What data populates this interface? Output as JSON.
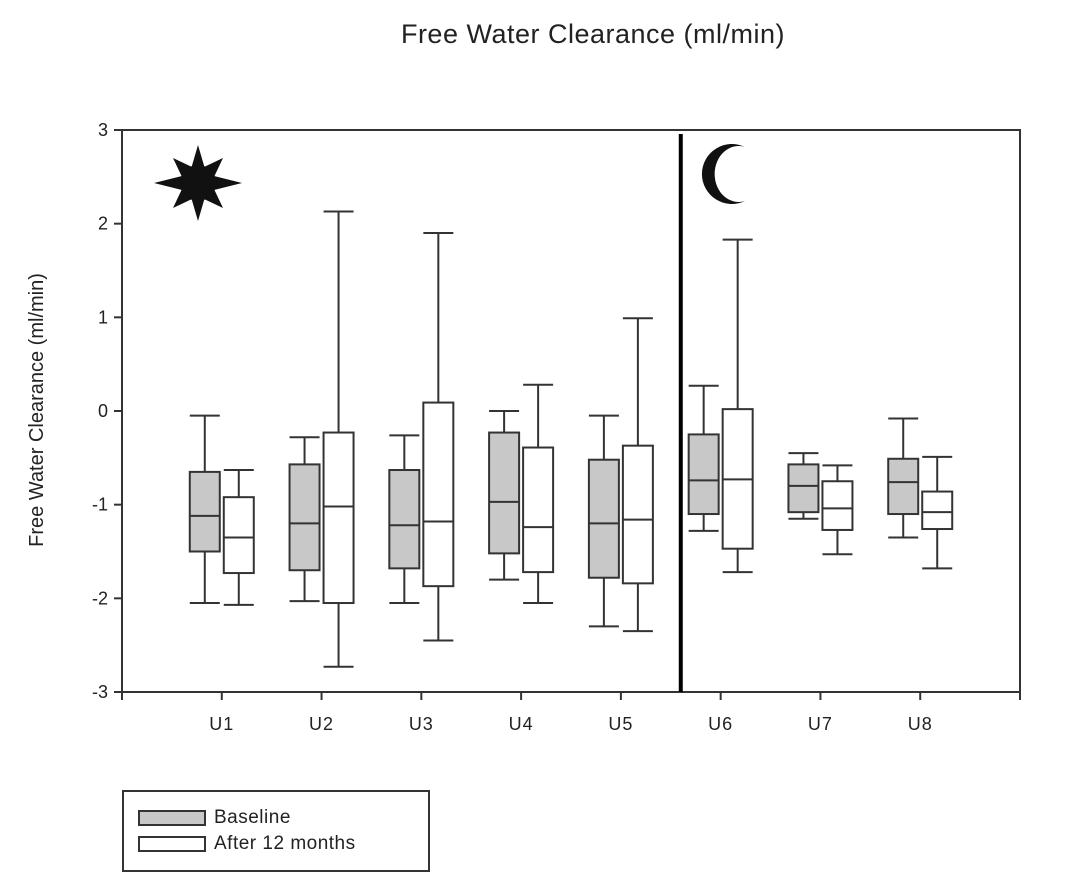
{
  "chart_data": {
    "type": "box",
    "title": "Free Water Clearance (ml/min)",
    "ylabel": "Free Water Clearance (ml/min)",
    "xlabel": "",
    "ylim": [
      -3,
      3
    ],
    "yticks": [
      -3,
      -2,
      -1,
      0,
      1,
      2,
      3
    ],
    "categories": [
      "U1",
      "U2",
      "U3",
      "U4",
      "U5",
      "U6",
      "U7",
      "U8"
    ],
    "divider_between": [
      "U5",
      "U6"
    ],
    "grid": false,
    "legend_position": "bottom-left, below plot",
    "icons": {
      "left_panel": "sun-icon",
      "right_panel": "moon-icon"
    },
    "colors": {
      "Baseline": "#c8c8c8",
      "After 12 months": "#ffffff",
      "stroke": "#333333"
    },
    "series": [
      {
        "name": "Baseline",
        "boxes": [
          {
            "category": "U1",
            "min": -2.05,
            "q1": -1.5,
            "median": -1.12,
            "q3": -0.65,
            "max": -0.05
          },
          {
            "category": "U2",
            "min": -2.03,
            "q1": -1.7,
            "median": -1.2,
            "q3": -0.57,
            "max": -0.28
          },
          {
            "category": "U3",
            "min": -2.05,
            "q1": -1.68,
            "median": -1.22,
            "q3": -0.63,
            "max": -0.26
          },
          {
            "category": "U4",
            "min": -1.8,
            "q1": -1.52,
            "median": -0.97,
            "q3": -0.23,
            "max": 0.0
          },
          {
            "category": "U5",
            "min": -2.3,
            "q1": -1.78,
            "median": -1.2,
            "q3": -0.52,
            "max": -0.05
          },
          {
            "category": "U6",
            "min": -1.28,
            "q1": -1.1,
            "median": -0.74,
            "q3": -0.25,
            "max": 0.27
          },
          {
            "category": "U7",
            "min": -1.15,
            "q1": -1.08,
            "median": -0.8,
            "q3": -0.57,
            "max": -0.45
          },
          {
            "category": "U8",
            "min": -1.35,
            "q1": -1.1,
            "median": -0.76,
            "q3": -0.51,
            "max": -0.08
          }
        ]
      },
      {
        "name": "After 12 months",
        "boxes": [
          {
            "category": "U1",
            "min": -2.07,
            "q1": -1.73,
            "median": -1.35,
            "q3": -0.92,
            "max": -0.63
          },
          {
            "category": "U2",
            "min": -2.73,
            "q1": -2.05,
            "median": -1.02,
            "q3": -0.23,
            "max": 2.13
          },
          {
            "category": "U3",
            "min": -2.45,
            "q1": -1.87,
            "median": -1.18,
            "q3": 0.09,
            "max": 1.9
          },
          {
            "category": "U4",
            "min": -2.05,
            "q1": -1.72,
            "median": -1.24,
            "q3": -0.39,
            "max": 0.28
          },
          {
            "category": "U5",
            "min": -2.35,
            "q1": -1.84,
            "median": -1.16,
            "q3": -0.37,
            "max": 0.99
          },
          {
            "category": "U6",
            "min": -1.72,
            "q1": -1.47,
            "median": -0.73,
            "q3": 0.02,
            "max": 1.83
          },
          {
            "category": "U7",
            "min": -1.53,
            "q1": -1.27,
            "median": -1.04,
            "q3": -0.75,
            "max": -0.58
          },
          {
            "category": "U8",
            "min": -1.68,
            "q1": -1.26,
            "median": -1.08,
            "q3": -0.86,
            "max": -0.49
          }
        ]
      }
    ]
  }
}
